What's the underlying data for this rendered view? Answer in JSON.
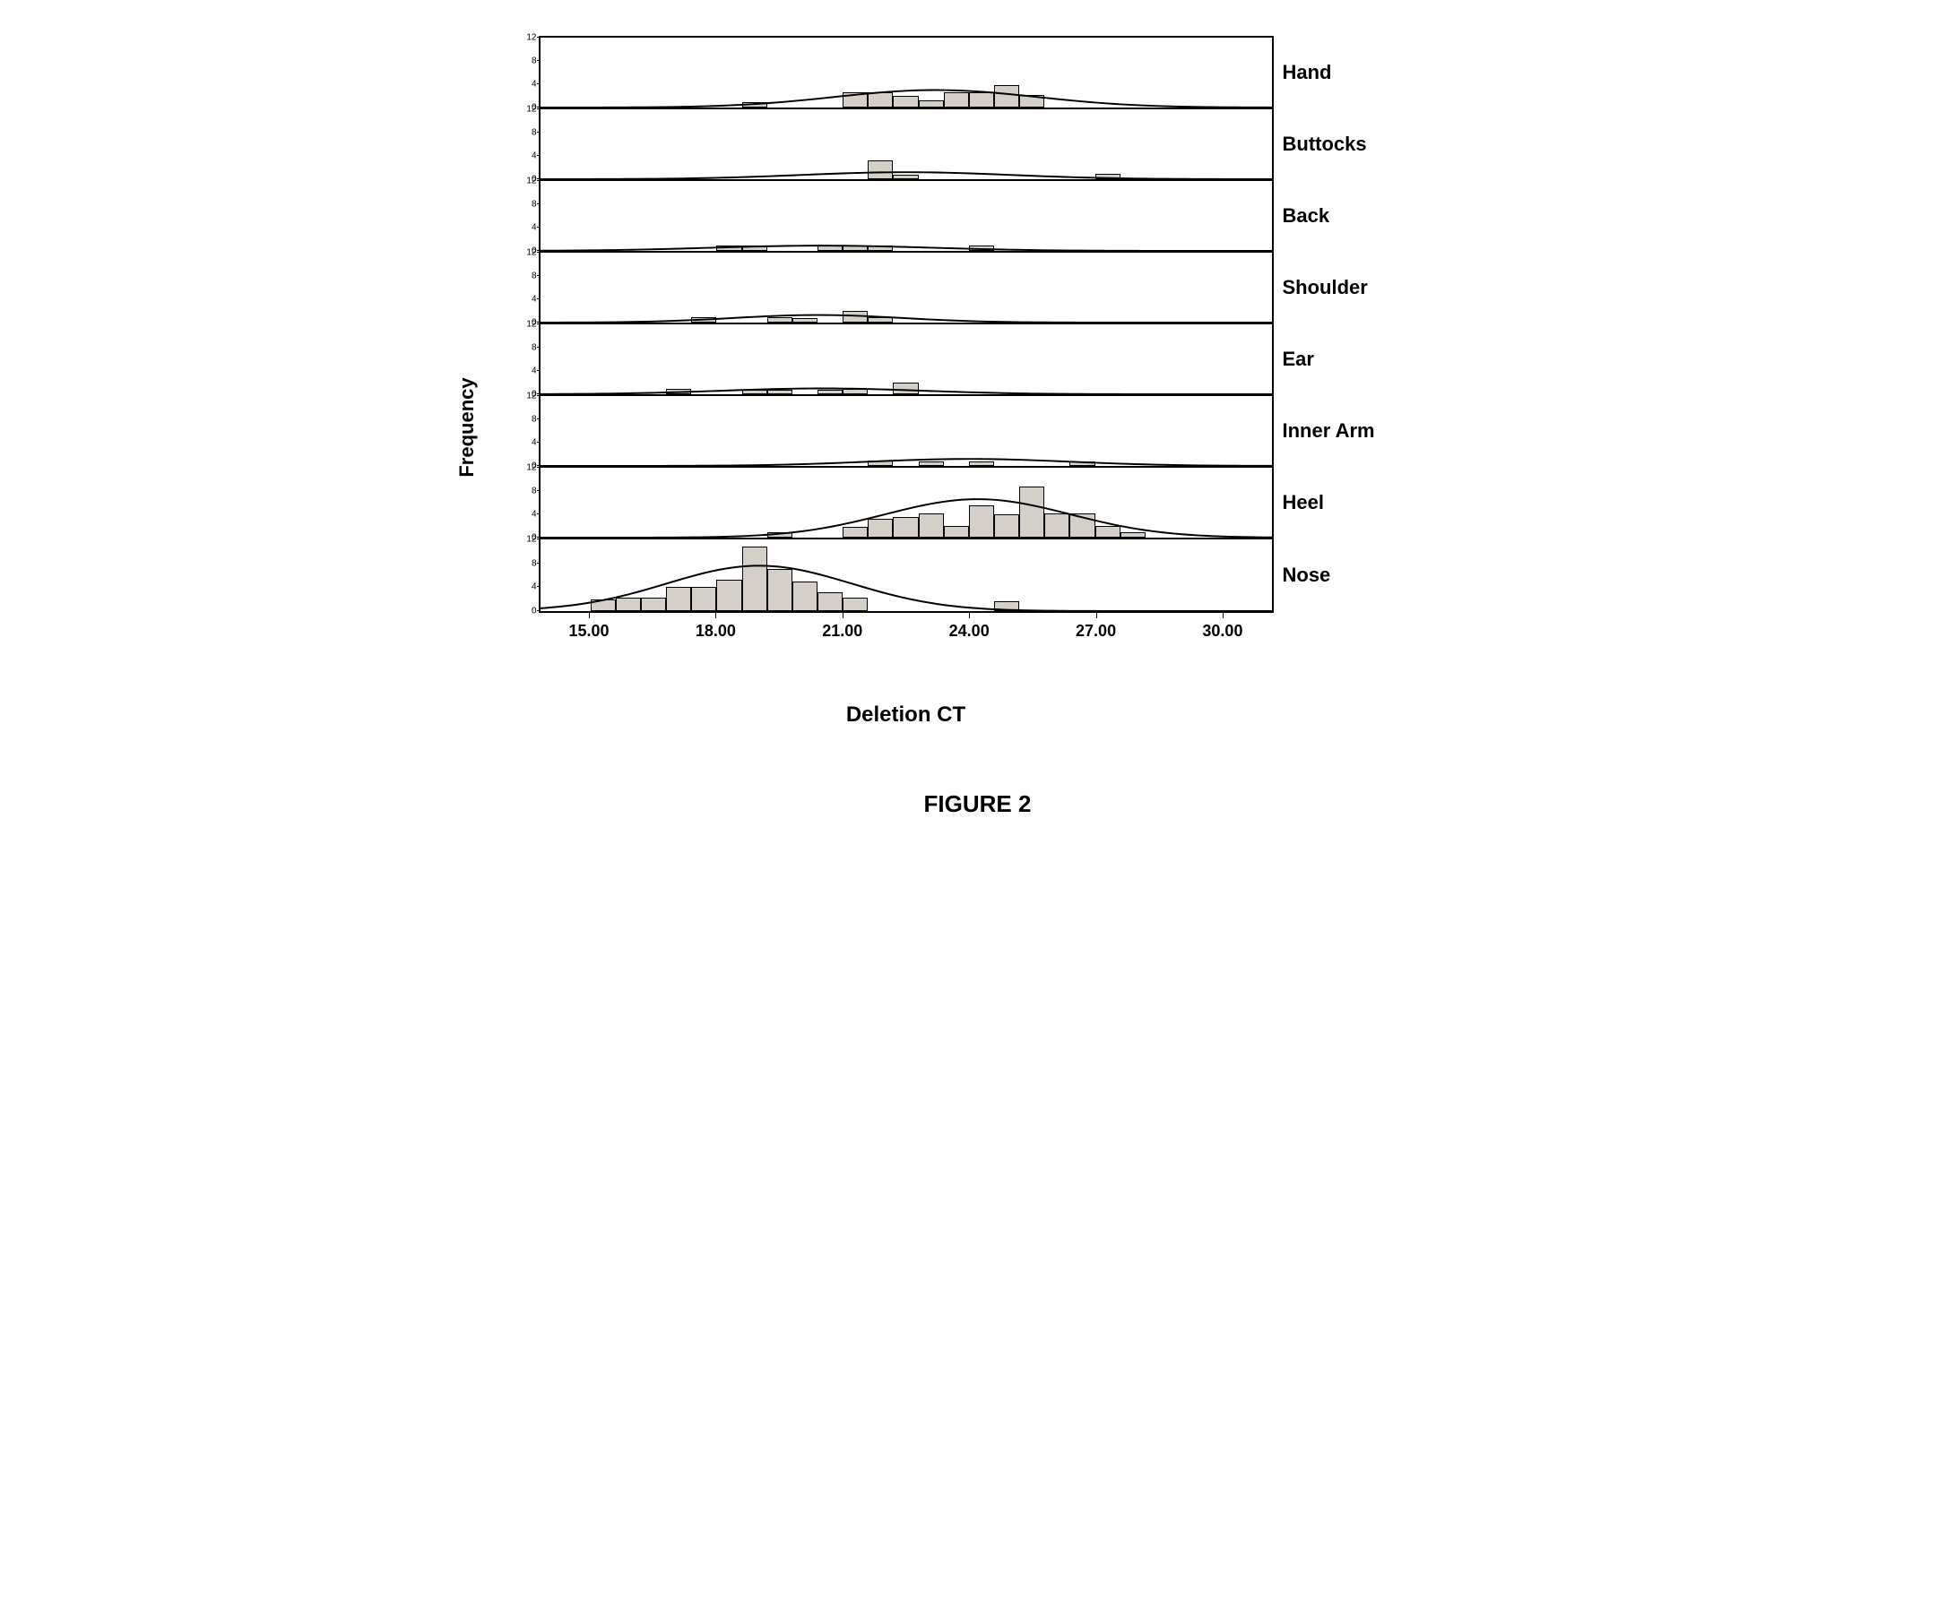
{
  "figure": {
    "caption": "FIGURE 2",
    "xlabel": "Deletion CT",
    "ylabel": "Frequency",
    "x_domain": [
      13.8,
      31.2
    ],
    "x_ticks": [
      15.0,
      18.0,
      21.0,
      24.0,
      27.0,
      30.0
    ],
    "x_tick_format": "fixed2",
    "y_domain": [
      0,
      12
    ],
    "y_ticks": [
      0,
      4,
      8,
      12
    ],
    "bin_width": 0.6,
    "bar_fill": "#d4cfc8",
    "bar_stroke": "#000000",
    "curve_stroke": "#000000",
    "curve_stroke_width": 2,
    "background": "#ffffff",
    "panel_border": "#000000",
    "label_fontsize": 22,
    "axis_label_fontsize": 24,
    "tick_fontsize_y": 10,
    "tick_fontsize_x": 18,
    "panels": [
      {
        "id": "hand",
        "label": "Hand",
        "bars": [
          {
            "x": 18.9,
            "h": 1
          },
          {
            "x": 21.3,
            "h": 2.6
          },
          {
            "x": 21.9,
            "h": 2.6
          },
          {
            "x": 22.5,
            "h": 2
          },
          {
            "x": 23.1,
            "h": 1.2
          },
          {
            "x": 23.7,
            "h": 2.6
          },
          {
            "x": 24.3,
            "h": 2.6
          },
          {
            "x": 24.9,
            "h": 3.8
          },
          {
            "x": 25.5,
            "h": 2.2
          }
        ],
        "curve": {
          "mu": 23.2,
          "sigma": 2.4,
          "amp": 3.0
        }
      },
      {
        "id": "buttocks",
        "label": "Buttocks",
        "bars": [
          {
            "x": 21.9,
            "h": 3.2
          },
          {
            "x": 22.5,
            "h": 0.8
          },
          {
            "x": 27.3,
            "h": 1
          }
        ],
        "curve": {
          "mu": 22.5,
          "sigma": 2.5,
          "amp": 1.2
        }
      },
      {
        "id": "back",
        "label": "Back",
        "bars": [
          {
            "x": 18.3,
            "h": 1
          },
          {
            "x": 18.9,
            "h": 1
          },
          {
            "x": 20.7,
            "h": 1
          },
          {
            "x": 21.3,
            "h": 1
          },
          {
            "x": 21.9,
            "h": 1
          },
          {
            "x": 24.3,
            "h": 1
          }
        ],
        "curve": {
          "mu": 20.5,
          "sigma": 2.6,
          "amp": 0.9
        }
      },
      {
        "id": "shoulder",
        "label": "Shoulder",
        "bars": [
          {
            "x": 17.7,
            "h": 1
          },
          {
            "x": 19.5,
            "h": 1
          },
          {
            "x": 20.1,
            "h": 0.8
          },
          {
            "x": 21.3,
            "h": 2
          },
          {
            "x": 21.9,
            "h": 1
          }
        ],
        "curve": {
          "mu": 20.4,
          "sigma": 2.0,
          "amp": 1.3
        }
      },
      {
        "id": "ear",
        "label": "Ear",
        "bars": [
          {
            "x": 17.1,
            "h": 1
          },
          {
            "x": 18.9,
            "h": 0.8
          },
          {
            "x": 19.5,
            "h": 0.8
          },
          {
            "x": 20.7,
            "h": 0.8
          },
          {
            "x": 21.3,
            "h": 1
          },
          {
            "x": 22.5,
            "h": 2
          }
        ],
        "curve": {
          "mu": 20.5,
          "sigma": 2.4,
          "amp": 1.0
        }
      },
      {
        "id": "inner-arm",
        "label": "Inner Arm",
        "bars": [
          {
            "x": 21.9,
            "h": 1
          },
          {
            "x": 23.1,
            "h": 0.8
          },
          {
            "x": 24.3,
            "h": 0.8
          },
          {
            "x": 26.7,
            "h": 0.8
          }
        ],
        "curve": {
          "mu": 24.0,
          "sigma": 2.4,
          "amp": 1.2
        }
      },
      {
        "id": "heel",
        "label": "Heel",
        "bars": [
          {
            "x": 19.5,
            "h": 1
          },
          {
            "x": 21.3,
            "h": 1.8
          },
          {
            "x": 21.9,
            "h": 3.2
          },
          {
            "x": 22.5,
            "h": 3.6
          },
          {
            "x": 23.1,
            "h": 4.2
          },
          {
            "x": 23.7,
            "h": 2
          },
          {
            "x": 24.3,
            "h": 5.6
          },
          {
            "x": 24.9,
            "h": 4
          },
          {
            "x": 25.5,
            "h": 8.8
          },
          {
            "x": 26.1,
            "h": 4.2
          },
          {
            "x": 26.7,
            "h": 4.2
          },
          {
            "x": 27.3,
            "h": 2
          },
          {
            "x": 27.9,
            "h": 1
          }
        ],
        "curve": {
          "mu": 24.2,
          "sigma": 2.2,
          "amp": 6.6
        }
      },
      {
        "id": "nose",
        "label": "Nose",
        "bars": [
          {
            "x": 15.3,
            "h": 2
          },
          {
            "x": 15.9,
            "h": 2.2
          },
          {
            "x": 16.5,
            "h": 2.2
          },
          {
            "x": 17.1,
            "h": 4
          },
          {
            "x": 17.7,
            "h": 4
          },
          {
            "x": 18.3,
            "h": 5.2
          },
          {
            "x": 18.9,
            "h": 10.8
          },
          {
            "x": 19.5,
            "h": 7
          },
          {
            "x": 20.1,
            "h": 5
          },
          {
            "x": 20.7,
            "h": 3.2
          },
          {
            "x": 21.3,
            "h": 2.2
          },
          {
            "x": 24.9,
            "h": 1.6
          }
        ],
        "curve": {
          "mu": 19.0,
          "sigma": 2.2,
          "amp": 7.6
        }
      }
    ]
  }
}
